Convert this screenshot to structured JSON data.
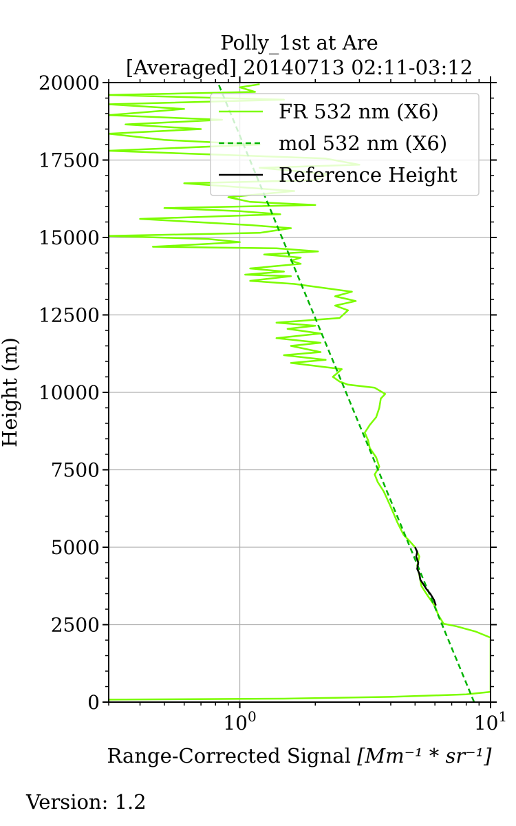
{
  "footer": {
    "version": "Version: 1.2"
  },
  "chart_data": {
    "type": "line",
    "title_line1": "Polly_1st at Are",
    "title_line2": "[Averaged] 20140713 02:11-03:12",
    "xlabel": "Range-Corrected Signal",
    "xlabel_units": "[Mm⁻¹ * sr⁻¹]",
    "ylabel": "Height (m)",
    "xscale": "log",
    "xlim": [
      0.3,
      10
    ],
    "ylim": [
      0,
      20000
    ],
    "yticks": [
      0,
      2500,
      5000,
      7500,
      10000,
      12500,
      15000,
      17500,
      20000
    ],
    "xticks": [
      {
        "value": 1,
        "base": "10",
        "exp": "0"
      },
      {
        "value": 10,
        "base": "10",
        "exp": "1"
      }
    ],
    "grid": true,
    "legend_position": "upper-right",
    "colors": {
      "fr": "#7cfc00",
      "mol": "#00b300",
      "ref": "#000000",
      "grid": "#b0b0b0"
    },
    "series": [
      {
        "name": "FR 532 nm (X6)",
        "style": "solid",
        "color": "#7cfc00",
        "points": [
          [
            0.3,
            80
          ],
          [
            1.5,
            110
          ],
          [
            4.0,
            170
          ],
          [
            8.0,
            250
          ],
          [
            10.0,
            330
          ],
          [
            10.0,
            400
          ],
          [
            10.0,
            2080
          ],
          [
            8.7,
            2280
          ],
          [
            7.3,
            2450
          ],
          [
            6.5,
            2530
          ],
          [
            6.2,
            2800
          ],
          [
            6.0,
            3100
          ],
          [
            5.6,
            3450
          ],
          [
            5.3,
            3750
          ],
          [
            5.2,
            4100
          ],
          [
            5.1,
            4400
          ],
          [
            5.2,
            4700
          ],
          [
            5.0,
            5000
          ],
          [
            4.75,
            5200
          ],
          [
            4.5,
            5400
          ],
          [
            4.25,
            5800
          ],
          [
            4.1,
            6100
          ],
          [
            3.95,
            6400
          ],
          [
            3.75,
            6800
          ],
          [
            3.55,
            7100
          ],
          [
            3.45,
            7350
          ],
          [
            3.6,
            7600
          ],
          [
            3.5,
            7900
          ],
          [
            3.3,
            8200
          ],
          [
            3.25,
            8450
          ],
          [
            3.15,
            8700
          ],
          [
            3.3,
            8950
          ],
          [
            3.5,
            9200
          ],
          [
            3.6,
            9500
          ],
          [
            3.65,
            9800
          ],
          [
            3.8,
            9950
          ],
          [
            3.45,
            10150
          ],
          [
            2.7,
            10250
          ],
          [
            2.5,
            10350
          ],
          [
            2.35,
            10500
          ],
          [
            2.55,
            10750
          ],
          [
            1.6,
            10950
          ],
          [
            2.2,
            11050
          ],
          [
            1.5,
            11200
          ],
          [
            2.1,
            11300
          ],
          [
            1.6,
            11500
          ],
          [
            2.1,
            11600
          ],
          [
            1.4,
            11750
          ],
          [
            2.1,
            11900
          ],
          [
            1.55,
            12050
          ],
          [
            2.0,
            12150
          ],
          [
            1.4,
            12250
          ],
          [
            2.5,
            12400
          ],
          [
            2.7,
            12650
          ],
          [
            2.4,
            12800
          ],
          [
            2.9,
            12950
          ],
          [
            2.4,
            13100
          ],
          [
            2.8,
            13250
          ],
          [
            1.65,
            13500
          ],
          [
            1.1,
            13600
          ],
          [
            1.6,
            13750
          ],
          [
            1.05,
            13800
          ],
          [
            1.5,
            13900
          ],
          [
            1.1,
            14000
          ],
          [
            1.75,
            14150
          ],
          [
            1.6,
            14250
          ],
          [
            1.75,
            14350
          ],
          [
            1.25,
            14450
          ],
          [
            2.05,
            14550
          ],
          [
            1.4,
            14650
          ],
          [
            0.45,
            14700
          ],
          [
            1.0,
            14850
          ],
          [
            0.75,
            14950
          ],
          [
            0.3,
            15050
          ],
          [
            1.2,
            15150
          ],
          [
            1.6,
            15300
          ],
          [
            1.1,
            15400
          ],
          [
            0.4,
            15600
          ],
          [
            1.45,
            15750
          ],
          [
            1.0,
            15850
          ],
          [
            0.5,
            15950
          ],
          [
            2.0,
            16050
          ],
          [
            1.1,
            16150
          ],
          [
            0.9,
            16300
          ],
          [
            1.65,
            16500
          ],
          [
            1.1,
            16600
          ],
          [
            0.6,
            16750
          ],
          [
            2.0,
            16850
          ],
          [
            2.25,
            17050
          ],
          [
            1.2,
            17250
          ],
          [
            3.0,
            17350
          ],
          [
            2.2,
            17550
          ],
          [
            0.3,
            17800
          ],
          [
            1.2,
            18000
          ],
          [
            0.5,
            18150
          ],
          [
            0.3,
            18350
          ],
          [
            0.7,
            18500
          ],
          [
            0.35,
            18650
          ],
          [
            0.85,
            18800
          ],
          [
            0.3,
            18950
          ],
          [
            0.6,
            19150
          ],
          [
            0.3,
            19300
          ],
          [
            1.5,
            19450
          ],
          [
            0.3,
            19600
          ],
          [
            1.15,
            19700
          ],
          [
            1.0,
            19850
          ],
          [
            1.2,
            19950
          ]
        ]
      },
      {
        "name": "mol 532 nm (X6)",
        "style": "dashed",
        "color": "#00b300",
        "model": {
          "x0": 8.6,
          "scale_height_m": 8500
        }
      },
      {
        "name": "Reference Height",
        "style": "solid",
        "color": "#000000",
        "points": [
          [
            6.05,
            3120
          ],
          [
            5.95,
            3300
          ],
          [
            5.75,
            3500
          ],
          [
            5.55,
            3650
          ],
          [
            5.4,
            3800
          ],
          [
            5.25,
            3950
          ],
          [
            5.2,
            4150
          ],
          [
            5.1,
            4300
          ],
          [
            5.15,
            4500
          ],
          [
            5.05,
            4700
          ],
          [
            5.1,
            4850
          ],
          [
            5.0,
            5000
          ]
        ]
      }
    ]
  }
}
